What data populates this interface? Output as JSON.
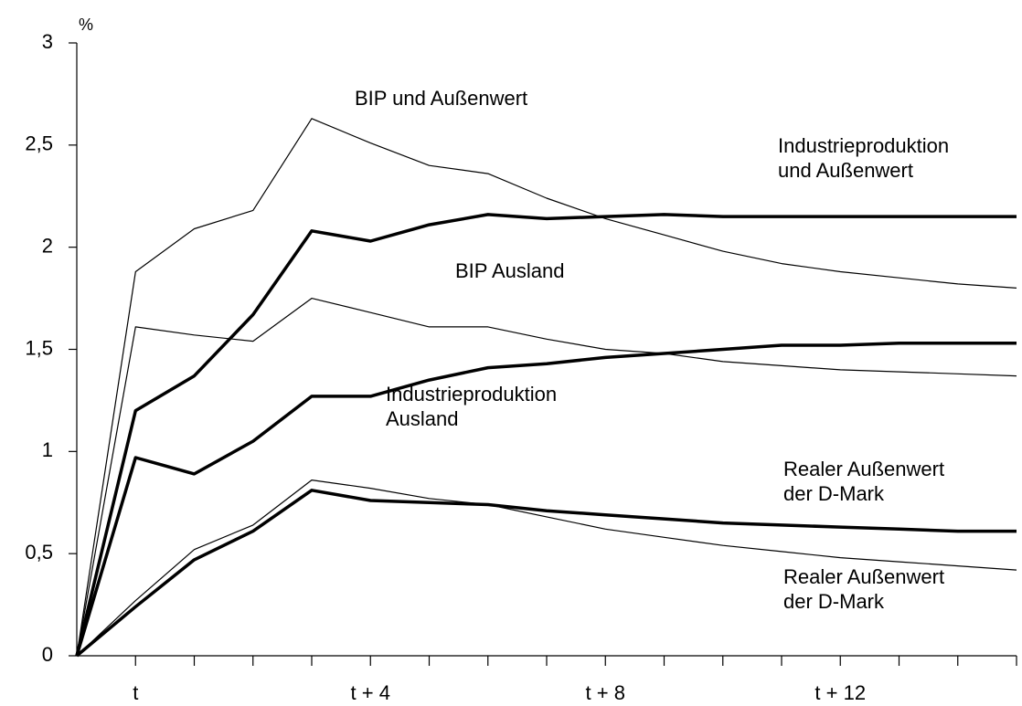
{
  "chart_data": {
    "type": "line",
    "y_label": "%",
    "categories": [
      null,
      "t",
      null,
      null,
      null,
      "t + 4",
      null,
      null,
      null,
      "t + 8",
      null,
      null,
      null,
      "t + 12",
      null,
      null,
      null
    ],
    "ylim": [
      0,
      3
    ],
    "yticks": [
      0,
      {
        "value": 0.5,
        "label": "0,5"
      },
      1,
      {
        "value": 1.5,
        "label": "1,5"
      },
      2,
      {
        "value": 2.5,
        "label": "2,5"
      },
      3
    ],
    "series": [
      {
        "name": "BIP und Außenwert",
        "color": "#000000",
        "line_width": 1.2,
        "values": [
          0,
          1.88,
          2.09,
          2.18,
          2.63,
          2.51,
          2.4,
          2.36,
          2.24,
          2.14,
          2.06,
          1.98,
          1.92,
          1.88,
          1.85,
          1.82,
          1.8
        ]
      },
      {
        "name": "Industrieproduktion und Außenwert",
        "color": "#000000",
        "line_width": 3.5,
        "values": [
          0,
          1.2,
          1.37,
          1.67,
          2.08,
          2.03,
          2.11,
          2.16,
          2.14,
          2.15,
          2.16,
          2.15,
          2.15,
          2.15,
          2.15,
          2.15,
          2.15
        ]
      },
      {
        "name": "BIP Ausland",
        "color": "#000000",
        "line_width": 1.2,
        "values": [
          0,
          1.61,
          1.57,
          1.54,
          1.75,
          1.68,
          1.61,
          1.61,
          1.55,
          1.5,
          1.48,
          1.44,
          1.42,
          1.4,
          1.39,
          1.38,
          1.37
        ]
      },
      {
        "name": "Industrieproduktion Ausland",
        "color": "#000000",
        "line_width": 3.5,
        "values": [
          0,
          0.97,
          0.89,
          1.05,
          1.27,
          1.27,
          1.35,
          1.41,
          1.43,
          1.46,
          1.48,
          1.5,
          1.52,
          1.52,
          1.53,
          1.53,
          1.53
        ]
      },
      {
        "name": "Realer Außenwert der D-Mark",
        "color": "#000000",
        "line_width": 3.5,
        "values": [
          0,
          0.24,
          0.47,
          0.61,
          0.81,
          0.76,
          0.75,
          0.74,
          0.71,
          0.69,
          0.67,
          0.65,
          0.64,
          0.63,
          0.62,
          0.61,
          0.61
        ]
      },
      {
        "name": "Realer Außenwert der D-Mark",
        "color": "#000000",
        "line_width": 1.2,
        "values": [
          0,
          0.27,
          0.52,
          0.64,
          0.86,
          0.82,
          0.77,
          0.74,
          0.68,
          0.62,
          0.58,
          0.54,
          0.51,
          0.48,
          0.46,
          0.44,
          0.42
        ]
      }
    ]
  }
}
